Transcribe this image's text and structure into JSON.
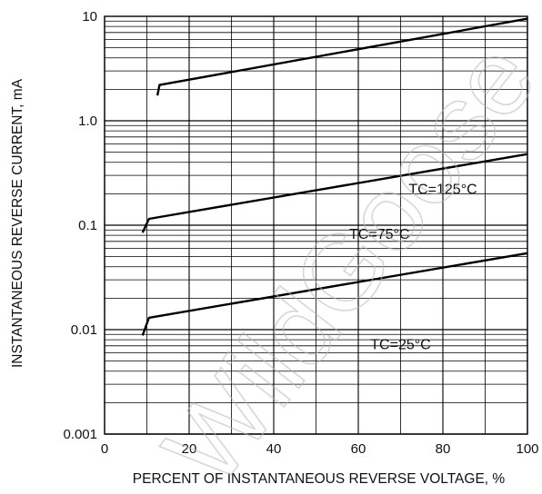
{
  "chart_data": {
    "type": "line",
    "title": "",
    "xlabel": "PERCENT OF INSTANTANEOUS REVERSE VOLTAGE, %",
    "ylabel": "INSTANTANEOUS REVERSE CURRENT, mA",
    "x_scale": "linear",
    "y_scale": "log",
    "xlim": [
      0,
      100
    ],
    "ylim": [
      0.001,
      10
    ],
    "x_ticks": [
      0,
      20,
      40,
      60,
      80,
      100
    ],
    "x_tick_labels": [
      "0",
      "20",
      "40",
      "60",
      "80",
      "100"
    ],
    "y_ticks": [
      0.001,
      0.01,
      0.1,
      1.0,
      10
    ],
    "y_tick_labels": [
      "0.001",
      "0.01",
      "0.1",
      "1.0",
      "10"
    ],
    "grid": true,
    "series": [
      {
        "name": "TC=125°C",
        "label_text": "TC=125°C",
        "x": [
          12.5,
          13.0,
          100
        ],
        "y": [
          1.75,
          2.2,
          9.5
        ]
      },
      {
        "name": "TC=75°C",
        "label_text": "TC=75°C",
        "x": [
          9.0,
          10.5,
          100
        ],
        "y": [
          0.085,
          0.115,
          0.48
        ]
      },
      {
        "name": "TC=25°C",
        "label_text": "TC=25°C",
        "x": [
          9.0,
          10.5,
          100
        ],
        "y": [
          0.0088,
          0.013,
          0.054
        ]
      }
    ]
  },
  "watermark": {
    "text": "WildGoose"
  },
  "colors": {
    "line": "#000000",
    "grid": "#000000",
    "watermark": "#b8b8b8"
  }
}
